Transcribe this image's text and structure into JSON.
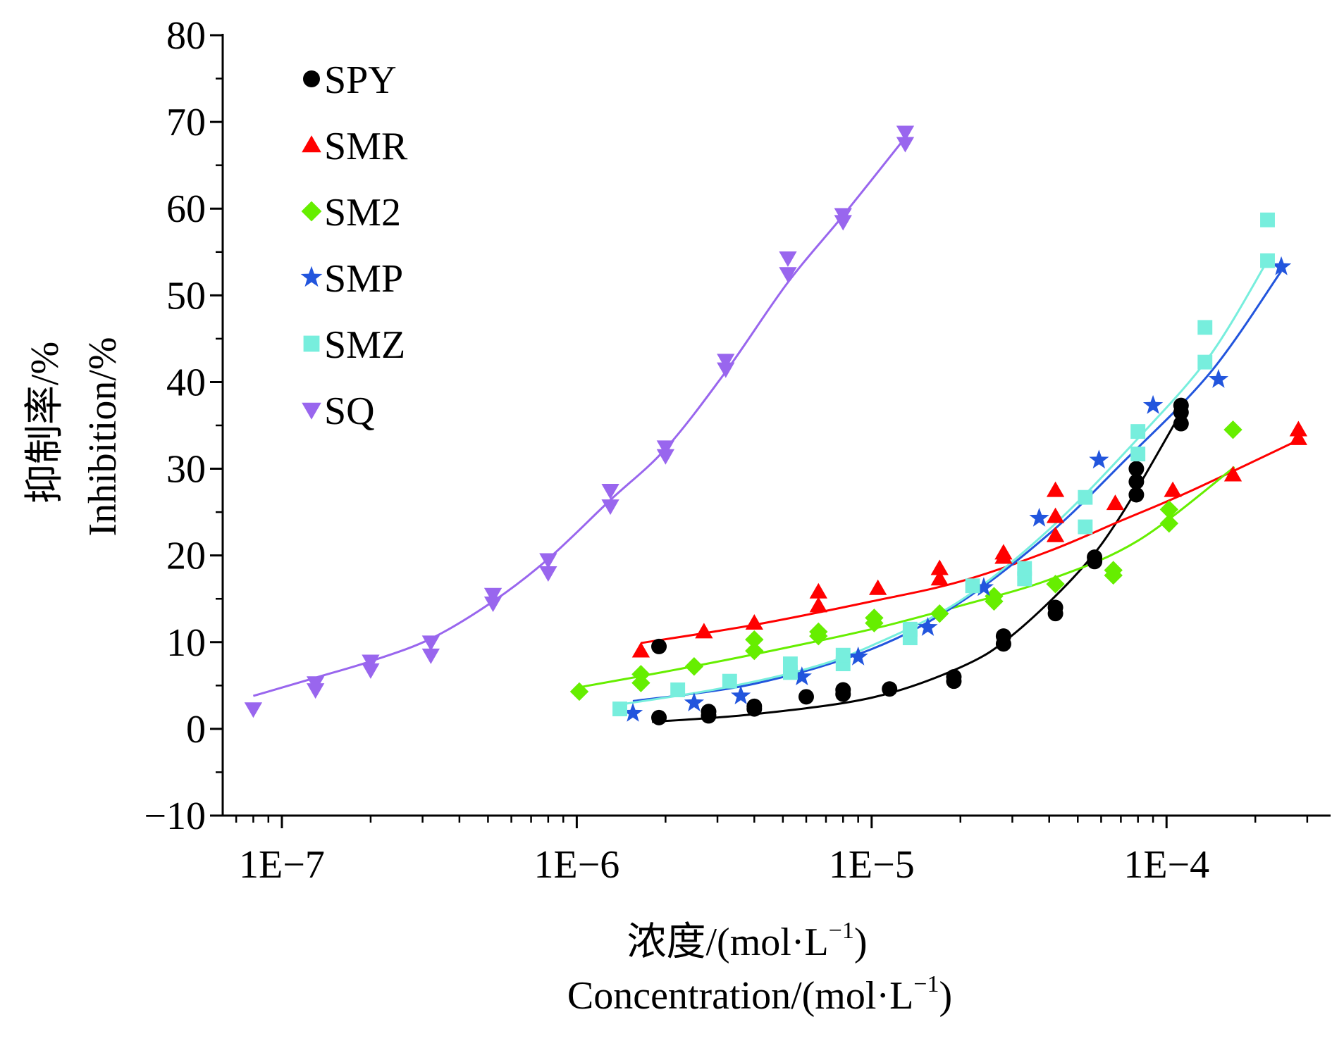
{
  "chart_data": {
    "type": "scatter",
    "x_scale": "log",
    "xlim": [
      6.3e-08,
      0.00036
    ],
    "ylim": [
      -10,
      80
    ],
    "grid": false,
    "legend_position": "top-left",
    "x_ticks": [
      {
        "value": 1e-07,
        "label": "1E−7"
      },
      {
        "value": 1e-06,
        "label": "1E−6"
      },
      {
        "value": 1e-05,
        "label": "1E−5"
      },
      {
        "value": 0.0001,
        "label": "1E−4"
      }
    ],
    "y_ticks": [
      {
        "value": -10,
        "label": "−10"
      },
      {
        "value": 0,
        "label": "0"
      },
      {
        "value": 10,
        "label": "10"
      },
      {
        "value": 20,
        "label": "20"
      },
      {
        "value": 30,
        "label": "30"
      },
      {
        "value": 40,
        "label": "40"
      },
      {
        "value": 50,
        "label": "50"
      },
      {
        "value": 60,
        "label": "60"
      },
      {
        "value": 70,
        "label": "70"
      },
      {
        "value": 80,
        "label": "80"
      }
    ],
    "ylabel_cn": "抑制率/%",
    "ylabel_en": "Inhibition/%",
    "xlabel_cn": "浓度/(mol·L",
    "xlabel_en": "Concentration/(mol·L",
    "xlabel_sup": "−1",
    "xlabel_close": ")",
    "series": [
      {
        "name": "SPY",
        "color": "#000000",
        "marker": "circle",
        "points": [
          [
            1.9e-06,
            1.3
          ],
          [
            1.9e-06,
            9.5
          ],
          [
            2.8e-06,
            1.5
          ],
          [
            2.8e-06,
            2.0
          ],
          [
            4e-06,
            2.3
          ],
          [
            4e-06,
            2.6
          ],
          [
            6e-06,
            3.7
          ],
          [
            8e-06,
            4.0
          ],
          [
            8e-06,
            4.5
          ],
          [
            1.15e-05,
            4.6
          ],
          [
            1.9e-05,
            5.5
          ],
          [
            1.9e-05,
            6.0
          ],
          [
            2.8e-05,
            9.8
          ],
          [
            2.8e-05,
            10.7
          ],
          [
            4.2e-05,
            13.3
          ],
          [
            4.2e-05,
            14.0
          ],
          [
            5.7e-05,
            19.3
          ],
          [
            5.7e-05,
            19.8
          ],
          [
            7.9e-05,
            27.0
          ],
          [
            7.9e-05,
            28.5
          ],
          [
            7.9e-05,
            30.0
          ],
          [
            0.000112,
            35.2
          ],
          [
            0.000112,
            36.5
          ],
          [
            0.000112,
            37.3
          ]
        ],
        "fit": [
          [
            1.8e-06,
            0.8
          ],
          [
            4e-06,
            1.7
          ],
          [
            1e-05,
            3.6
          ],
          [
            2e-05,
            7.1
          ],
          [
            3e-05,
            10.8
          ],
          [
            5e-05,
            18.0
          ],
          [
            7e-05,
            24.6
          ],
          [
            0.000112,
            36.5
          ]
        ]
      },
      {
        "name": "SMR",
        "color": "#ff0000",
        "marker": "triangle-up",
        "points": [
          [
            1.65e-06,
            9.0
          ],
          [
            2.7e-06,
            11.2
          ],
          [
            4e-06,
            12.2
          ],
          [
            6.6e-06,
            14.2
          ],
          [
            6.6e-06,
            15.8
          ],
          [
            1.05e-05,
            16.2
          ],
          [
            1.7e-05,
            17.3
          ],
          [
            1.7e-05,
            18.5
          ],
          [
            2.8e-05,
            19.8
          ],
          [
            2.8e-05,
            20.3
          ],
          [
            4.2e-05,
            22.3
          ],
          [
            4.2e-05,
            24.5
          ],
          [
            4.2e-05,
            27.5
          ],
          [
            6.7e-05,
            26.0
          ],
          [
            0.000105,
            27.5
          ],
          [
            0.000168,
            29.3
          ],
          [
            0.00028,
            33.5
          ],
          [
            0.00028,
            34.5
          ]
        ],
        "fit": [
          [
            1.65e-06,
            9.9
          ],
          [
            4e-06,
            12.0
          ],
          [
            1e-05,
            14.7
          ],
          [
            2e-05,
            17.0
          ],
          [
            4e-05,
            20.5
          ],
          [
            7e-05,
            24.0
          ],
          [
            0.00012,
            27.4
          ],
          [
            0.00028,
            33.3
          ]
        ]
      },
      {
        "name": "SM2",
        "color": "#66ee00",
        "marker": "diamond",
        "points": [
          [
            1.02e-06,
            4.3
          ],
          [
            1.65e-06,
            5.3
          ],
          [
            1.65e-06,
            6.3
          ],
          [
            2.5e-06,
            7.2
          ],
          [
            4e-06,
            9.0
          ],
          [
            4e-06,
            10.3
          ],
          [
            6.6e-06,
            10.7
          ],
          [
            6.6e-06,
            11.2
          ],
          [
            1.02e-05,
            12.2
          ],
          [
            1.02e-05,
            12.8
          ],
          [
            1.7e-05,
            13.3
          ],
          [
            2.6e-05,
            14.7
          ],
          [
            2.6e-05,
            15.3
          ],
          [
            4.2e-05,
            16.7
          ],
          [
            6.6e-05,
            17.7
          ],
          [
            6.6e-05,
            18.3
          ],
          [
            0.000102,
            23.7
          ],
          [
            0.000102,
            25.3
          ],
          [
            0.000168,
            34.5
          ]
        ],
        "fit": [
          [
            1.02e-06,
            4.8
          ],
          [
            2e-06,
            6.6
          ],
          [
            4e-06,
            8.6
          ],
          [
            1e-05,
            11.5
          ],
          [
            2e-05,
            14.2
          ],
          [
            4e-05,
            17.2
          ],
          [
            8e-05,
            21.7
          ],
          [
            0.00017,
            30.2
          ]
        ]
      },
      {
        "name": "SMP",
        "color": "#2255dd",
        "marker": "star",
        "points": [
          [
            1.55e-06,
            1.8
          ],
          [
            2.5e-06,
            3.0
          ],
          [
            3.6e-06,
            3.8
          ],
          [
            5.8e-06,
            6.0
          ],
          [
            9e-06,
            8.3
          ],
          [
            1.55e-05,
            11.7
          ],
          [
            2.4e-05,
            16.3
          ],
          [
            3.7e-05,
            24.3
          ],
          [
            5.9e-05,
            31.0
          ],
          [
            9e-05,
            37.3
          ],
          [
            0.00015,
            40.3
          ],
          [
            0.000245,
            53.3
          ]
        ],
        "fit": [
          [
            1.55e-06,
            3.2
          ],
          [
            4e-06,
            5.2
          ],
          [
            1e-05,
            9.2
          ],
          [
            2e-05,
            14.6
          ],
          [
            4e-05,
            22.5
          ],
          [
            7e-05,
            30.5
          ],
          [
            0.00014,
            41.0
          ],
          [
            0.000245,
            52.8
          ]
        ]
      },
      {
        "name": "SMZ",
        "color": "#77eedd",
        "marker": "square",
        "points": [
          [
            1.4e-06,
            2.3
          ],
          [
            2.2e-06,
            4.5
          ],
          [
            3.3e-06,
            5.5
          ],
          [
            5.3e-06,
            6.5
          ],
          [
            5.3e-06,
            7.5
          ],
          [
            8e-06,
            7.5
          ],
          [
            8e-06,
            8.5
          ],
          [
            1.35e-05,
            10.5
          ],
          [
            1.35e-05,
            11.5
          ],
          [
            2.2e-05,
            16.5
          ],
          [
            3.3e-05,
            17.3
          ],
          [
            3.3e-05,
            18.5
          ],
          [
            5.3e-05,
            23.3
          ],
          [
            5.3e-05,
            26.7
          ],
          [
            8e-05,
            31.7
          ],
          [
            8e-05,
            34.3
          ],
          [
            0.000135,
            42.3
          ],
          [
            0.000135,
            46.3
          ],
          [
            0.00022,
            54.0
          ],
          [
            0.00022,
            58.7
          ]
        ],
        "fit": [
          [
            1.4e-06,
            2.8
          ],
          [
            3e-06,
            4.6
          ],
          [
            6e-06,
            6.9
          ],
          [
            1e-05,
            9.6
          ],
          [
            2e-05,
            14.8
          ],
          [
            4e-05,
            23.0
          ],
          [
            8e-05,
            33.5
          ],
          [
            0.00014,
            43.0
          ],
          [
            0.00022,
            54.0
          ]
        ]
      },
      {
        "name": "SQ",
        "color": "#9966ee",
        "marker": "triangle-down",
        "points": [
          [
            8e-08,
            2.3
          ],
          [
            1.3e-07,
            4.5
          ],
          [
            1.3e-07,
            5.3
          ],
          [
            2e-07,
            6.8
          ],
          [
            2e-07,
            7.8
          ],
          [
            3.2e-07,
            8.5
          ],
          [
            3.2e-07,
            10.0
          ],
          [
            5.2e-07,
            14.5
          ],
          [
            5.2e-07,
            15.5
          ],
          [
            8e-07,
            18.0
          ],
          [
            8e-07,
            19.5
          ],
          [
            1.3e-06,
            25.7
          ],
          [
            1.3e-06,
            27.5
          ],
          [
            2e-06,
            31.5
          ],
          [
            2e-06,
            32.5
          ],
          [
            3.2e-06,
            41.5
          ],
          [
            3.2e-06,
            42.5
          ],
          [
            5.2e-06,
            52.5
          ],
          [
            5.2e-06,
            54.3
          ],
          [
            8e-06,
            58.5
          ],
          [
            8e-06,
            59.3
          ],
          [
            1.3e-05,
            67.5
          ],
          [
            1.3e-05,
            68.8
          ]
        ],
        "fit": [
          [
            8e-08,
            3.8
          ],
          [
            1.3e-07,
            5.9
          ],
          [
            2e-07,
            7.8
          ],
          [
            3.2e-07,
            10.4
          ],
          [
            5.2e-07,
            14.7
          ],
          [
            8e-07,
            19.6
          ],
          [
            1.3e-06,
            26.4
          ],
          [
            2e-06,
            32.3
          ],
          [
            3.2e-06,
            41.2
          ],
          [
            5.2e-06,
            51.5
          ],
          [
            8e-06,
            59.2
          ],
          [
            1.3e-05,
            68.2
          ]
        ]
      }
    ]
  }
}
